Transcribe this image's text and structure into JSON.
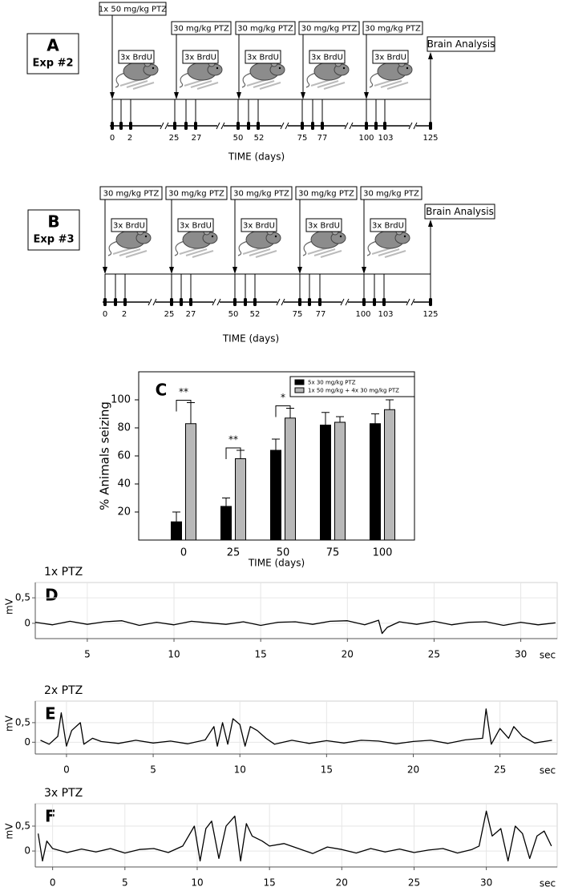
{
  "panel_a": {
    "letter": "A",
    "experiment": "Exp #2",
    "doses": [
      "1x 50 mg/kg PTZ",
      "30 mg/kg PTZ",
      "30 mg/kg PTZ",
      "30 mg/kg PTZ",
      "30 mg/kg PTZ"
    ],
    "injections": [
      "3x BrdU",
      "3x BrdU",
      "3x BrdU",
      "3x BrdU",
      "3x BrdU"
    ],
    "endpoint": "Brain Analysis",
    "day_labels": [
      0,
      2,
      25,
      27,
      50,
      52,
      75,
      77,
      100,
      103,
      125
    ],
    "axis_label": "TIME (days)"
  },
  "panel_b": {
    "letter": "B",
    "experiment": "Exp #3",
    "doses": [
      "30 mg/kg PTZ",
      "30 mg/kg PTZ",
      "30 mg/kg PTZ",
      "30 mg/kg PTZ",
      "30 mg/kg PTZ"
    ],
    "injections": [
      "3x BrdU",
      "3x BrdU",
      "3x BrdU",
      "3x BrdU",
      "3x BrdU"
    ],
    "endpoint": "Brain Analysis",
    "day_labels": [
      0,
      2,
      25,
      27,
      50,
      52,
      75,
      77,
      100,
      103,
      125
    ],
    "axis_label": "TIME (days)"
  },
  "chart_data": [
    {
      "type": "bar",
      "panel": "C",
      "xlabel": "TIME (days)",
      "ylabel": "% Animals seizing",
      "categories": [
        "0",
        "25",
        "50",
        "75",
        "100"
      ],
      "series": [
        {
          "name": "5x 30 mg/kg PTZ",
          "color": "#000000",
          "values": [
            13,
            24,
            64,
            82,
            83
          ],
          "errors": [
            7,
            6,
            8,
            9,
            7
          ]
        },
        {
          "name": "1x 50 mg/kg + 4x 30 mg/kg PTZ",
          "color": "#b8b8b8",
          "values": [
            83,
            58,
            87,
            84,
            93
          ],
          "errors": [
            15,
            6,
            7,
            4,
            7
          ]
        }
      ],
      "annotations": [
        "**",
        "**",
        "*",
        null,
        null
      ],
      "ylim": [
        0,
        120
      ],
      "yticks": [
        20,
        40,
        60,
        80,
        100
      ],
      "legend": "top-right"
    },
    {
      "type": "line",
      "panel": "D",
      "title": "1x PTZ",
      "ylabel": "mV",
      "xlabel": "sec",
      "color": "#000000",
      "grid": true,
      "x": [
        2,
        3,
        4,
        5,
        6,
        7,
        8,
        9,
        10,
        11,
        12,
        13,
        14,
        15,
        16,
        17,
        18,
        19,
        20,
        21,
        21.8,
        22,
        22.3,
        23,
        24,
        25,
        26,
        27,
        28,
        29,
        30,
        31,
        32
      ],
      "values": [
        0.02,
        -0.03,
        0.04,
        -0.02,
        0.03,
        0.05,
        -0.04,
        0.02,
        -0.03,
        0.04,
        0.01,
        -0.02,
        0.03,
        -0.04,
        0.02,
        0.03,
        -0.02,
        0.04,
        0.05,
        -0.03,
        0.06,
        -0.2,
        -0.08,
        0.03,
        -0.02,
        0.04,
        -0.03,
        0.02,
        0.03,
        -0.04,
        0.02,
        -0.03,
        0.01
      ],
      "xlim": [
        2,
        32.1
      ],
      "xticks": [
        5,
        10,
        15,
        20,
        25,
        30
      ],
      "ylim": [
        -0.3,
        0.8
      ],
      "yticks": [
        0,
        {
          "value": 0.5,
          "label": "0,5"
        }
      ]
    },
    {
      "type": "line",
      "panel": "E",
      "title": "2x PTZ",
      "ylabel": "mV",
      "xlabel": "sec",
      "color": "#000000",
      "grid": true,
      "x": [
        -1.5,
        -1,
        -0.5,
        -0.3,
        0,
        0.3,
        0.8,
        1,
        1.5,
        2,
        3,
        4,
        5,
        6,
        7,
        8,
        8.5,
        8.7,
        9,
        9.3,
        9.6,
        10,
        10.3,
        10.6,
        11,
        11.5,
        12,
        13,
        14,
        15,
        16,
        17,
        18,
        19,
        20,
        21,
        22,
        23,
        24,
        24.2,
        24.5,
        25,
        25.5,
        25.8,
        26.3,
        27,
        28
      ],
      "values": [
        0.05,
        -0.05,
        0.15,
        0.75,
        -0.1,
        0.3,
        0.5,
        -0.05,
        0.1,
        0.02,
        -0.03,
        0.05,
        -0.02,
        0.03,
        -0.04,
        0.06,
        0.4,
        -0.1,
        0.5,
        -0.05,
        0.6,
        0.45,
        -0.1,
        0.4,
        0.3,
        0.1,
        -0.05,
        0.05,
        -0.03,
        0.04,
        -0.02,
        0.05,
        0.03,
        -0.04,
        0.02,
        0.05,
        -0.03,
        0.06,
        0.1,
        0.85,
        -0.05,
        0.35,
        0.1,
        0.4,
        0.15,
        -0.02,
        0.05
      ],
      "xlim": [
        -1.8,
        28.3
      ],
      "xticks": [
        0,
        5,
        10,
        15,
        20,
        25
      ],
      "ylim": [
        -0.3,
        1.05
      ],
      "yticks": [
        0,
        {
          "value": 0.5,
          "label": "0,5"
        }
      ]
    },
    {
      "type": "line",
      "panel": "F",
      "title": "3x PTZ",
      "ylabel": "mV",
      "xlabel": "sec",
      "color": "#000000",
      "grid": true,
      "x": [
        -1,
        -0.7,
        -0.4,
        0,
        1,
        2,
        3,
        4,
        5,
        6,
        7,
        8,
        9,
        9.8,
        10.2,
        10.6,
        11,
        11.5,
        12,
        12.6,
        13,
        13.4,
        13.8,
        14.5,
        15,
        16,
        17,
        18,
        19,
        20,
        21,
        22,
        23,
        24,
        25,
        26,
        27,
        28,
        29,
        29.5,
        30,
        30.4,
        31,
        31.5,
        32,
        32.5,
        33,
        33.5,
        34,
        34.5
      ],
      "values": [
        0.35,
        -0.2,
        0.2,
        0.05,
        -0.03,
        0.04,
        -0.02,
        0.05,
        -0.04,
        0.03,
        0.05,
        -0.03,
        0.1,
        0.5,
        -0.2,
        0.45,
        0.6,
        -0.15,
        0.5,
        0.7,
        -0.2,
        0.55,
        0.3,
        0.2,
        0.1,
        0.15,
        0.05,
        -0.05,
        0.08,
        0.03,
        -0.04,
        0.05,
        -0.02,
        0.04,
        -0.03,
        0.02,
        0.05,
        -0.04,
        0.03,
        0.1,
        0.8,
        0.3,
        0.45,
        -0.2,
        0.5,
        0.35,
        -0.15,
        0.3,
        0.4,
        0.1
      ],
      "xlim": [
        -1.2,
        34.9
      ],
      "xticks": [
        0,
        5,
        10,
        15,
        20,
        25,
        30
      ],
      "ylim": [
        -0.32,
        0.95
      ],
      "yticks": [
        0,
        {
          "value": 0.5,
          "label": "0,5"
        }
      ]
    }
  ]
}
